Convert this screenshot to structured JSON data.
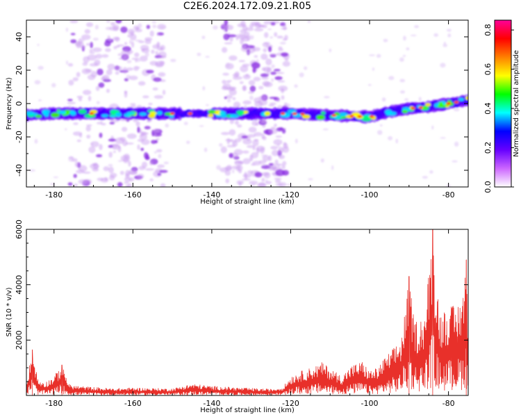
{
  "title": "C2E6.2024.172.09.21.R05",
  "chart_data": [
    {
      "type": "heatmap",
      "xlabel": "Height of straight line (km)",
      "ylabel": "Frequency (Hz)",
      "xlim": [
        -187,
        -75
      ],
      "ylim": [
        -50,
        50
      ],
      "xticks": [
        -180,
        -160,
        -140,
        -120,
        -100,
        -80
      ],
      "yticks": [
        -40,
        -20,
        0,
        20,
        40
      ],
      "grid": false,
      "band": {
        "x": [
          -187,
          -180,
          -170,
          -160,
          -150,
          -140,
          -130,
          -120,
          -110,
          -100,
          -95,
          -90,
          -85,
          -80,
          -75
        ],
        "center_freq_hz": [
          -7,
          -6,
          -6,
          -6,
          -6,
          -6,
          -6,
          -6,
          -7,
          -8,
          -5,
          -3,
          -2,
          0,
          2
        ]
      },
      "noise_regions_km": [
        [
          -176,
          -152
        ],
        [
          -137,
          -121
        ]
      ],
      "colorbar": {
        "label": "Normalized spectral amplitude",
        "range": [
          0.0,
          0.85
        ],
        "ticks": [
          0.0,
          0.2,
          0.4,
          0.6,
          0.8
        ],
        "colors": [
          "#ffffff",
          "#cc66ff",
          "#6600ff",
          "#0000ff",
          "#00ffff",
          "#00ff00",
          "#ffff00",
          "#ff8000",
          "#ff0000",
          "#ff0099"
        ]
      }
    },
    {
      "type": "line",
      "xlabel": "Height of straight line (km)",
      "ylabel": "SNR (10 * v/v)",
      "xlim": [
        -187,
        -75
      ],
      "ylim": [
        0,
        6000
      ],
      "xticks": [
        -180,
        -160,
        -140,
        -120,
        -100,
        -80
      ],
      "yticks": [
        2000,
        4000,
        6000
      ],
      "grid": false,
      "color": "#e8302a",
      "envelope": {
        "x": [
          -187,
          -185.5,
          -184,
          -182,
          -180,
          -178,
          -176,
          -172,
          -165,
          -160,
          -155,
          -150,
          -145,
          -140,
          -135,
          -130,
          -125,
          -122,
          -120,
          -118,
          -115,
          -112,
          -110,
          -107,
          -105,
          -102,
          -100,
          -98,
          -96,
          -94,
          -92,
          -91,
          -90,
          -89,
          -88,
          -86,
          -84,
          -83,
          -82,
          -80,
          -78,
          -76,
          -75.5,
          -75
        ],
        "y": [
          500,
          1650,
          550,
          500,
          700,
          1100,
          380,
          320,
          250,
          280,
          260,
          250,
          420,
          340,
          300,
          260,
          230,
          300,
          700,
          850,
          1000,
          1200,
          1000,
          700,
          1050,
          1250,
          900,
          1000,
          1400,
          1700,
          2100,
          3100,
          4300,
          3000,
          2700,
          3000,
          6000,
          4100,
          3000,
          3300,
          3200,
          4100,
          4900,
          2700
        ]
      },
      "peaks": [
        {
          "x": -185.5,
          "y": 1650
        },
        {
          "x": -178,
          "y": 1100
        },
        {
          "x": -90,
          "y": 4300
        },
        {
          "x": -84,
          "y": 6000
        },
        {
          "x": -75.5,
          "y": 4900
        }
      ]
    }
  ]
}
